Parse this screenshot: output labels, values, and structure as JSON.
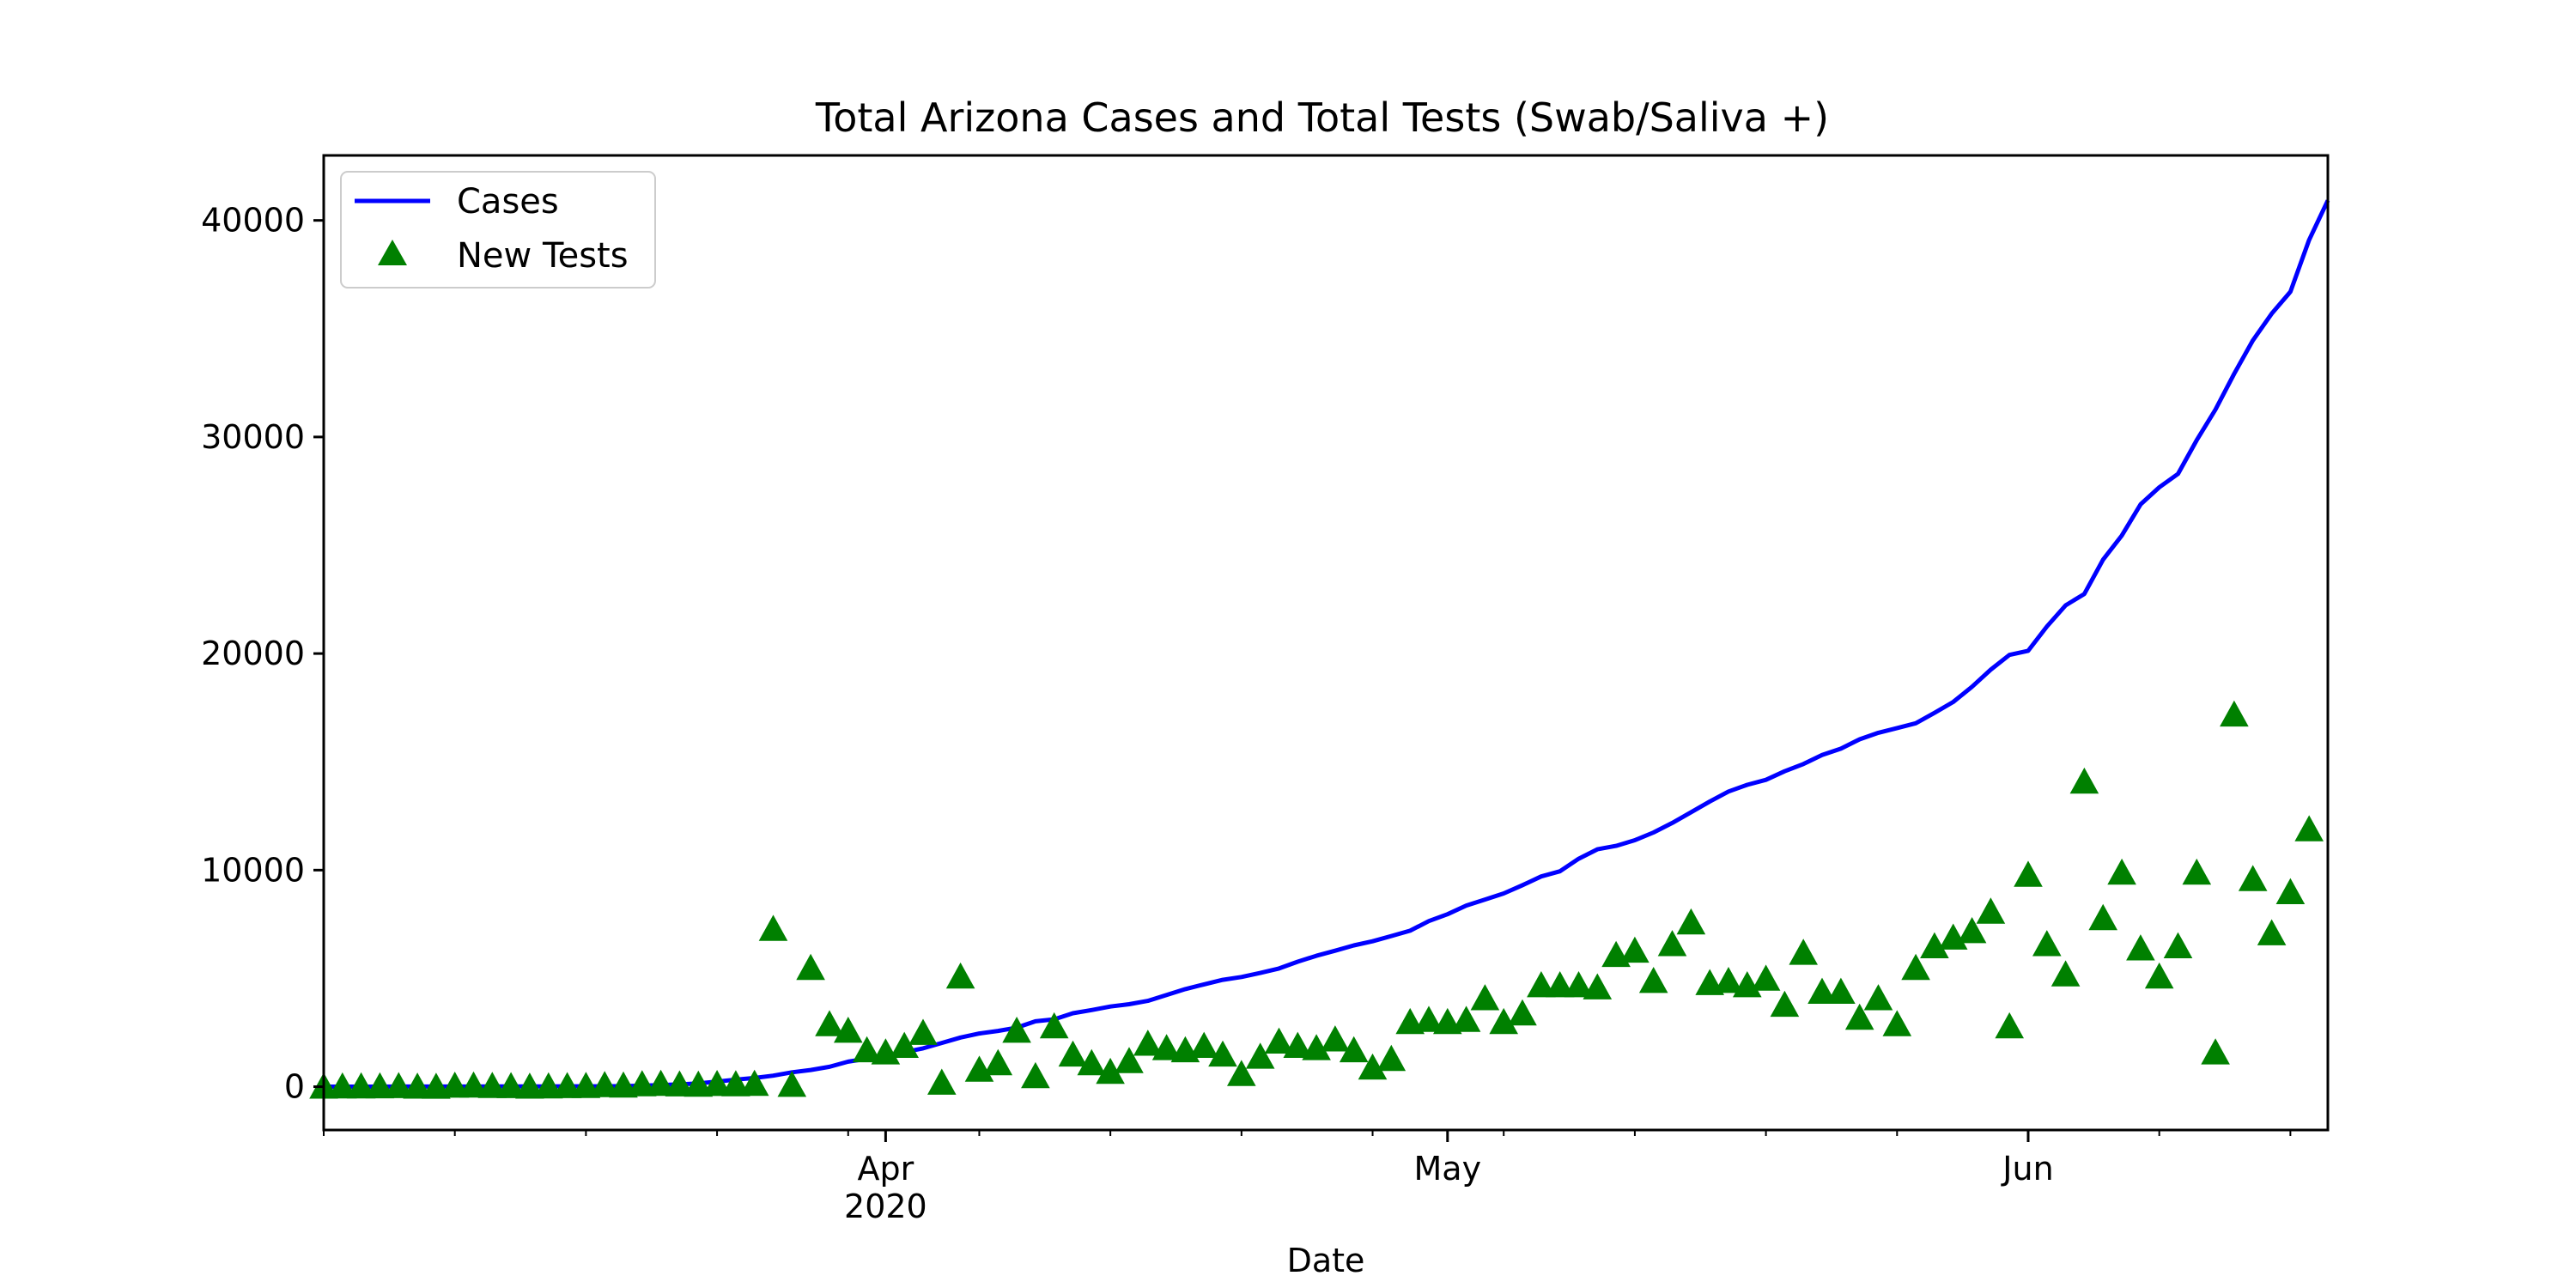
{
  "chart_data": {
    "type": "line",
    "title": "Total Arizona Cases and Total Tests (Swab/Saliva +)",
    "xlabel": "Date",
    "ylabel": "",
    "x_range": [
      "2020-03-02",
      "2020-06-17"
    ],
    "ylim": [
      -2000,
      43000
    ],
    "yticks": [
      0,
      10000,
      20000,
      30000,
      40000
    ],
    "xticks": [
      {
        "date": "2020-04-01",
        "label": "Apr",
        "sublabel": "2020"
      },
      {
        "date": "2020-05-01",
        "label": "May",
        "sublabel": ""
      },
      {
        "date": "2020-06-01",
        "label": "Jun",
        "sublabel": ""
      }
    ],
    "grid": false,
    "legend": {
      "placement": "top-left",
      "entries": [
        {
          "label": "Cases",
          "marker": "line",
          "color": "#0000ff"
        },
        {
          "label": "New Tests",
          "marker": "triangle",
          "color": "#008000"
        }
      ]
    },
    "series": [
      {
        "name": "Cases",
        "style": "line",
        "color": "#0000ff",
        "points": [
          [
            "2020-03-02",
            1
          ],
          [
            "2020-03-03",
            1
          ],
          [
            "2020-03-04",
            1
          ],
          [
            "2020-03-05",
            2
          ],
          [
            "2020-03-06",
            5
          ],
          [
            "2020-03-07",
            5
          ],
          [
            "2020-03-08",
            5
          ],
          [
            "2020-03-09",
            6
          ],
          [
            "2020-03-10",
            6
          ],
          [
            "2020-03-11",
            9
          ],
          [
            "2020-03-12",
            9
          ],
          [
            "2020-03-13",
            12
          ],
          [
            "2020-03-14",
            13
          ],
          [
            "2020-03-15",
            18
          ],
          [
            "2020-03-16",
            18
          ],
          [
            "2020-03-17",
            20
          ],
          [
            "2020-03-18",
            27
          ],
          [
            "2020-03-19",
            45
          ],
          [
            "2020-03-20",
            78
          ],
          [
            "2020-03-21",
            104
          ],
          [
            "2020-03-22",
            152
          ],
          [
            "2020-03-23",
            235
          ],
          [
            "2020-03-24",
            326
          ],
          [
            "2020-03-25",
            401
          ],
          [
            "2020-03-26",
            508
          ],
          [
            "2020-03-27",
            665
          ],
          [
            "2020-03-28",
            773
          ],
          [
            "2020-03-29",
            919
          ],
          [
            "2020-03-30",
            1157
          ],
          [
            "2020-03-31",
            1289
          ],
          [
            "2020-04-01",
            1413
          ],
          [
            "2020-04-02",
            1598
          ],
          [
            "2020-04-03",
            1769
          ],
          [
            "2020-04-04",
            2019
          ],
          [
            "2020-04-05",
            2269
          ],
          [
            "2020-04-06",
            2456
          ],
          [
            "2020-04-07",
            2575
          ],
          [
            "2020-04-08",
            2726
          ],
          [
            "2020-04-09",
            3018
          ],
          [
            "2020-04-10",
            3112
          ],
          [
            "2020-04-11",
            3393
          ],
          [
            "2020-04-12",
            3539
          ],
          [
            "2020-04-13",
            3702
          ],
          [
            "2020-04-14",
            3809
          ],
          [
            "2020-04-15",
            3962
          ],
          [
            "2020-04-16",
            4234
          ],
          [
            "2020-04-17",
            4507
          ],
          [
            "2020-04-18",
            4724
          ],
          [
            "2020-04-19",
            4933
          ],
          [
            "2020-04-20",
            5064
          ],
          [
            "2020-04-21",
            5251
          ],
          [
            "2020-04-22",
            5459
          ],
          [
            "2020-04-23",
            5769
          ],
          [
            "2020-04-24",
            6045
          ],
          [
            "2020-04-25",
            6280
          ],
          [
            "2020-04-26",
            6526
          ],
          [
            "2020-04-27",
            6716
          ],
          [
            "2020-04-28",
            6955
          ],
          [
            "2020-04-29",
            7202
          ],
          [
            "2020-04-30",
            7648
          ],
          [
            "2020-05-01",
            7962
          ],
          [
            "2020-05-02",
            8364
          ],
          [
            "2020-05-03",
            8640
          ],
          [
            "2020-05-04",
            8924
          ],
          [
            "2020-05-05",
            9305
          ],
          [
            "2020-05-06",
            9707
          ],
          [
            "2020-05-07",
            9945
          ],
          [
            "2020-05-08",
            10526
          ],
          [
            "2020-05-09",
            10960
          ],
          [
            "2020-05-10",
            11119
          ],
          [
            "2020-05-11",
            11383
          ],
          [
            "2020-05-12",
            11736
          ],
          [
            "2020-05-13",
            12176
          ],
          [
            "2020-05-14",
            12674
          ],
          [
            "2020-05-15",
            13169
          ],
          [
            "2020-05-16",
            13631
          ],
          [
            "2020-05-17",
            13937
          ],
          [
            "2020-05-18",
            14170
          ],
          [
            "2020-05-19",
            14566
          ],
          [
            "2020-05-20",
            14897
          ],
          [
            "2020-05-21",
            15315
          ],
          [
            "2020-05-22",
            15608
          ],
          [
            "2020-05-23",
            16039
          ],
          [
            "2020-05-24",
            16339
          ],
          [
            "2020-05-25",
            16561
          ],
          [
            "2020-05-26",
            16783
          ],
          [
            "2020-05-27",
            17262
          ],
          [
            "2020-05-28",
            17763
          ],
          [
            "2020-05-29",
            18465
          ],
          [
            "2020-05-30",
            19255
          ],
          [
            "2020-05-31",
            19936
          ],
          [
            "2020-06-01",
            20129
          ],
          [
            "2020-06-02",
            21250
          ],
          [
            "2020-06-03",
            22223
          ],
          [
            "2020-06-04",
            22753
          ],
          [
            "2020-06-05",
            24332
          ],
          [
            "2020-06-06",
            25451
          ],
          [
            "2020-06-07",
            26889
          ],
          [
            "2020-06-08",
            27678
          ],
          [
            "2020-06-09",
            28296
          ],
          [
            "2020-06-10",
            29852
          ],
          [
            "2020-06-11",
            31264
          ],
          [
            "2020-06-12",
            32918
          ],
          [
            "2020-06-13",
            34458
          ],
          [
            "2020-06-14",
            35691
          ],
          [
            "2020-06-15",
            36705
          ],
          [
            "2020-06-16",
            39097
          ],
          [
            "2020-06-17",
            40924
          ]
        ]
      },
      {
        "name": "New Tests",
        "style": "triangle",
        "color": "#008000",
        "points": [
          [
            "2020-03-02",
            20
          ],
          [
            "2020-03-03",
            25
          ],
          [
            "2020-03-04",
            30
          ],
          [
            "2020-03-05",
            35
          ],
          [
            "2020-03-06",
            40
          ],
          [
            "2020-03-07",
            20
          ],
          [
            "2020-03-08",
            15
          ],
          [
            "2020-03-09",
            60
          ],
          [
            "2020-03-10",
            70
          ],
          [
            "2020-03-11",
            50
          ],
          [
            "2020-03-12",
            40
          ],
          [
            "2020-03-13",
            20
          ],
          [
            "2020-03-14",
            30
          ],
          [
            "2020-03-15",
            40
          ],
          [
            "2020-03-16",
            50
          ],
          [
            "2020-03-17",
            90
          ],
          [
            "2020-03-18",
            70
          ],
          [
            "2020-03-19",
            130
          ],
          [
            "2020-03-20",
            150
          ],
          [
            "2020-03-21",
            120
          ],
          [
            "2020-03-22",
            110
          ],
          [
            "2020-03-23",
            140
          ],
          [
            "2020-03-24",
            130
          ],
          [
            "2020-03-25",
            150
          ],
          [
            "2020-03-26",
            7300
          ],
          [
            "2020-03-27",
            100
          ],
          [
            "2020-03-28",
            5500
          ],
          [
            "2020-03-29",
            2900
          ],
          [
            "2020-03-30",
            2600
          ],
          [
            "2020-03-31",
            1700
          ],
          [
            "2020-04-01",
            1600
          ],
          [
            "2020-04-02",
            1900
          ],
          [
            "2020-04-03",
            2500
          ],
          [
            "2020-04-04",
            200
          ],
          [
            "2020-04-05",
            5100
          ],
          [
            "2020-04-06",
            800
          ],
          [
            "2020-04-07",
            1100
          ],
          [
            "2020-04-08",
            2600
          ],
          [
            "2020-04-09",
            500
          ],
          [
            "2020-04-10",
            2800
          ],
          [
            "2020-04-11",
            1500
          ],
          [
            "2020-04-12",
            1100
          ],
          [
            "2020-04-13",
            700
          ],
          [
            "2020-04-14",
            1200
          ],
          [
            "2020-04-15",
            2000
          ],
          [
            "2020-04-16",
            1800
          ],
          [
            "2020-04-17",
            1700
          ],
          [
            "2020-04-18",
            1900
          ],
          [
            "2020-04-19",
            1500
          ],
          [
            "2020-04-20",
            600
          ],
          [
            "2020-04-21",
            1400
          ],
          [
            "2020-04-22",
            2100
          ],
          [
            "2020-04-23",
            1900
          ],
          [
            "2020-04-24",
            1800
          ],
          [
            "2020-04-25",
            2200
          ],
          [
            "2020-04-26",
            1700
          ],
          [
            "2020-04-27",
            900
          ],
          [
            "2020-04-28",
            1300
          ],
          [
            "2020-04-29",
            3000
          ],
          [
            "2020-04-30",
            3100
          ],
          [
            "2020-05-01",
            3000
          ],
          [
            "2020-05-02",
            3100
          ],
          [
            "2020-05-03",
            4100
          ],
          [
            "2020-05-04",
            3000
          ],
          [
            "2020-05-05",
            3400
          ],
          [
            "2020-05-06",
            4700
          ],
          [
            "2020-05-07",
            4700
          ],
          [
            "2020-05-08",
            4700
          ],
          [
            "2020-05-09",
            4600
          ],
          [
            "2020-05-10",
            6100
          ],
          [
            "2020-05-11",
            6300
          ],
          [
            "2020-05-12",
            4900
          ],
          [
            "2020-05-13",
            6600
          ],
          [
            "2020-05-14",
            7600
          ],
          [
            "2020-05-15",
            4800
          ],
          [
            "2020-05-16",
            4900
          ],
          [
            "2020-05-17",
            4700
          ],
          [
            "2020-05-18",
            5000
          ],
          [
            "2020-05-19",
            3800
          ],
          [
            "2020-05-20",
            6200
          ],
          [
            "2020-05-21",
            4400
          ],
          [
            "2020-05-22",
            4400
          ],
          [
            "2020-05-23",
            3200
          ],
          [
            "2020-05-24",
            4100
          ],
          [
            "2020-05-25",
            2900
          ],
          [
            "2020-05-26",
            5500
          ],
          [
            "2020-05-27",
            6500
          ],
          [
            "2020-05-28",
            6900
          ],
          [
            "2020-05-29",
            7200
          ],
          [
            "2020-05-30",
            8100
          ],
          [
            "2020-05-31",
            2800
          ],
          [
            "2020-06-01",
            9800
          ],
          [
            "2020-06-02",
            6600
          ],
          [
            "2020-06-03",
            5200
          ],
          [
            "2020-06-04",
            14100
          ],
          [
            "2020-06-05",
            7800
          ],
          [
            "2020-06-06",
            9900
          ],
          [
            "2020-06-07",
            6400
          ],
          [
            "2020-06-08",
            5100
          ],
          [
            "2020-06-09",
            6500
          ],
          [
            "2020-06-10",
            9900
          ],
          [
            "2020-06-11",
            1600
          ],
          [
            "2020-06-12",
            17200
          ],
          [
            "2020-06-13",
            9600
          ],
          [
            "2020-06-14",
            7100
          ],
          [
            "2020-06-15",
            9000
          ],
          [
            "2020-06-16",
            11900
          ]
        ]
      }
    ]
  }
}
